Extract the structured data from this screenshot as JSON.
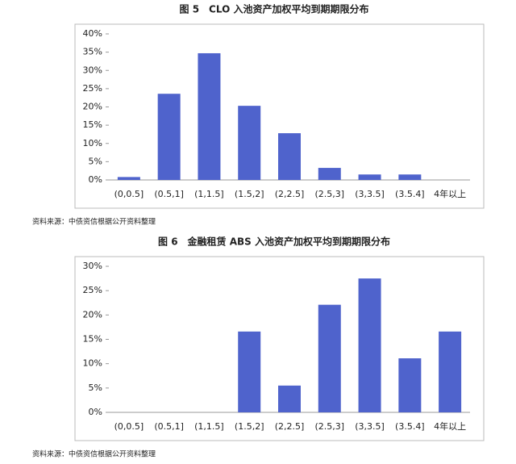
{
  "charts": [
    {
      "chart_data": {
        "type": "bar",
        "title": "图 5　CLO 入池资产加权平均到期期限分布",
        "categories": [
          "(0,0.5]",
          "(0.5,1]",
          "(1,1.5]",
          "(1.5,2]",
          "(2,2.5]",
          "(2.5,3]",
          "(3,3.5]",
          "(3.5.4]",
          "4年以上"
        ],
        "values": [
          0.8,
          23.6,
          34.7,
          20.3,
          12.8,
          3.3,
          1.5,
          1.5,
          0
        ],
        "color": "#4f63cc",
        "ylim": [
          0,
          40
        ],
        "yticks": [
          {
            "value": 0,
            "label": "0%"
          },
          {
            "value": 5,
            "label": "5%"
          },
          {
            "value": 10,
            "label": "10%"
          },
          {
            "value": 15,
            "label": "15%"
          },
          {
            "value": 20,
            "label": "20%"
          },
          {
            "value": 25,
            "label": "25%"
          },
          {
            "value": 30,
            "label": "30%"
          },
          {
            "value": 35,
            "label": "35%"
          },
          {
            "value": 40,
            "label": "40%"
          }
        ],
        "grid": false,
        "source": "资料来源：中债资信根据公开资料整理"
      }
    },
    {
      "chart_data": {
        "type": "bar",
        "title": "图 6　金融租赁 ABS 入池资产加权平均到期期限分布",
        "categories": [
          "(0,0.5]",
          "(0.5,1]",
          "(1,1.5]",
          "(1.5,2]",
          "(2,2.5]",
          "(2.5,3]",
          "(3,3.5]",
          "(3.5.4]",
          "4年以上"
        ],
        "values": [
          0,
          0,
          0,
          16.6,
          5.5,
          22.1,
          27.5,
          11.1,
          16.6
        ],
        "color": "#4f63cc",
        "ylim": [
          0,
          30
        ],
        "yticks": [
          {
            "value": 0,
            "label": "0%"
          },
          {
            "value": 5,
            "label": "5%"
          },
          {
            "value": 10,
            "label": "10%"
          },
          {
            "value": 15,
            "label": "15%"
          },
          {
            "value": 20,
            "label": "20%"
          },
          {
            "value": 25,
            "label": "25%"
          },
          {
            "value": 30,
            "label": "30%"
          }
        ],
        "grid": false,
        "source": "资料来源：中债资信根据公开资料整理"
      }
    }
  ]
}
